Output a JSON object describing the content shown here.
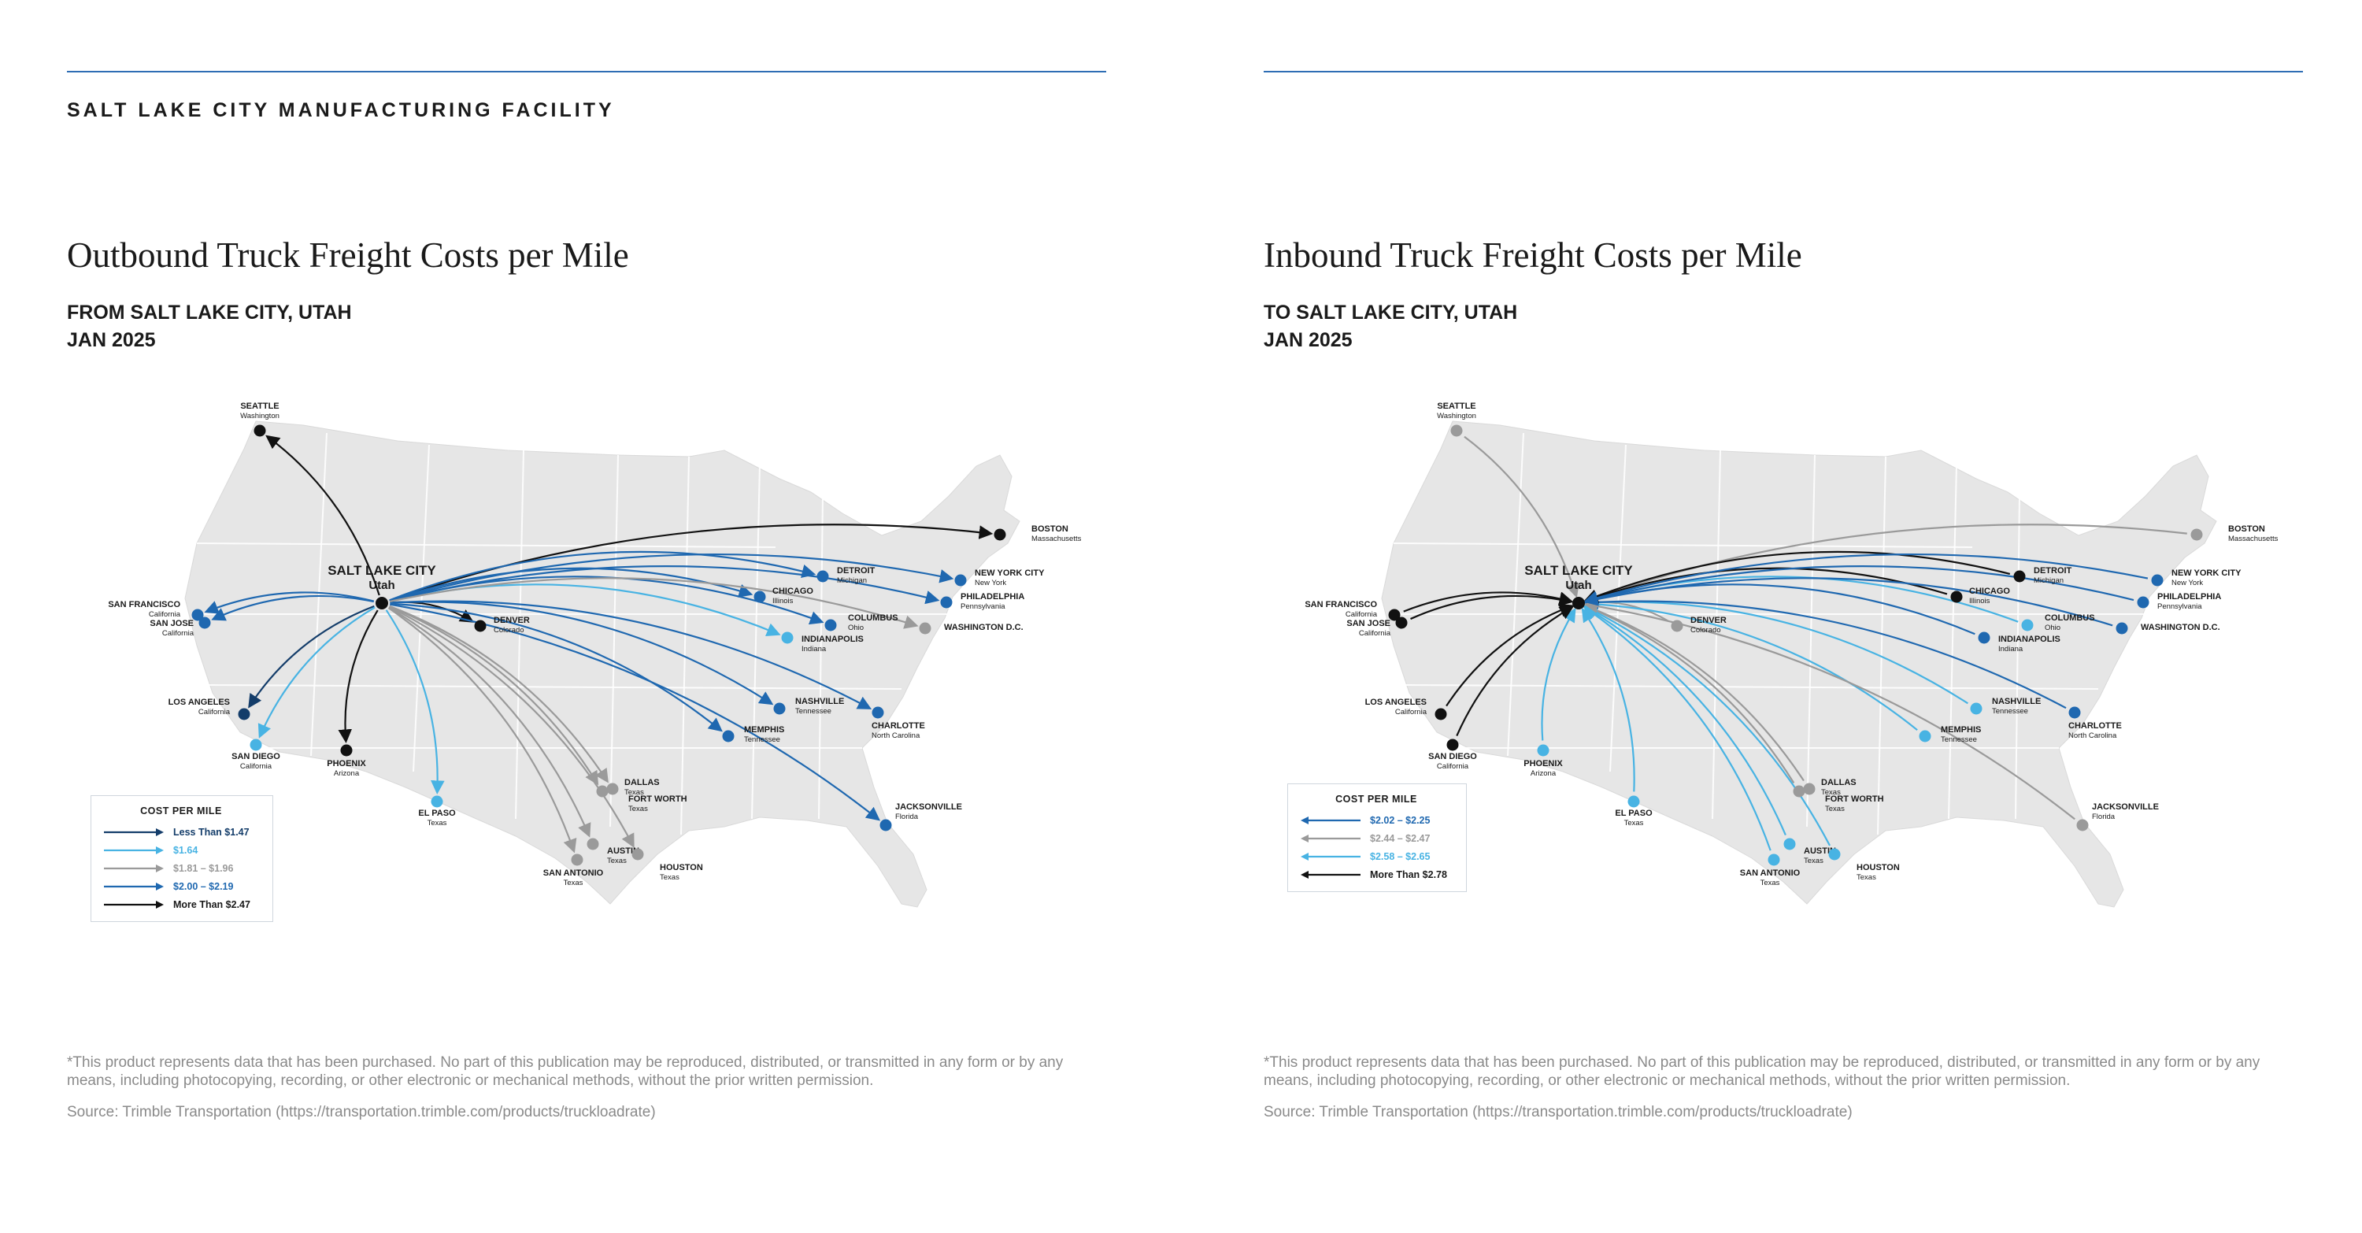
{
  "facility": "SALT LAKE CITY MANUFACTURING FACILITY",
  "colors": {
    "dark_navy": "#143d6a",
    "blue": "#1f68b0",
    "light_blue": "#48b3e3",
    "gray": "#9a9a9a",
    "black": "#111111",
    "land": "#e6e6e6",
    "border": "#ffffff"
  },
  "maps": [
    {
      "title": "Outbound Truck Freight Costs per Mile",
      "subtitle_line1": "FROM SALT LAKE CITY, UTAH",
      "subtitle_line2": "JAN 2025",
      "direction": "outbound",
      "hub": {
        "name": "SALT LAKE CITY",
        "state": "Utah"
      },
      "legend": {
        "title": "COST PER MILE",
        "items": [
          {
            "key": "dark_navy",
            "label": "Less Than $1.47"
          },
          {
            "key": "light_blue",
            "label": "$1.64"
          },
          {
            "key": "gray",
            "label": "$1.81 – $1.96"
          },
          {
            "key": "blue",
            "label": "$2.00 – $2.19"
          },
          {
            "key": "black",
            "label": "More Than $2.47"
          }
        ]
      },
      "routes": [
        {
          "city": "SEATTLE",
          "state": "Washington",
          "tier": "black"
        },
        {
          "city": "BOSTON",
          "state": "Massachusetts",
          "tier": "black"
        },
        {
          "city": "DENVER",
          "state": "Colorado",
          "tier": "black"
        },
        {
          "city": "PHOENIX",
          "state": "Arizona",
          "tier": "black"
        },
        {
          "city": "SAN FRANCISCO",
          "state": "California",
          "tier": "blue"
        },
        {
          "city": "SAN JOSE",
          "state": "California",
          "tier": "blue"
        },
        {
          "city": "LOS ANGELES",
          "state": "California",
          "tier": "dark_navy"
        },
        {
          "city": "SAN DIEGO",
          "state": "California",
          "tier": "light_blue"
        },
        {
          "city": "EL PASO",
          "state": "Texas",
          "tier": "light_blue"
        },
        {
          "city": "DALLAS",
          "state": "Texas",
          "tier": "gray"
        },
        {
          "city": "FORT WORTH",
          "state": "Texas",
          "tier": "gray"
        },
        {
          "city": "AUSTIN",
          "state": "Texas",
          "tier": "gray"
        },
        {
          "city": "SAN ANTONIO",
          "state": "Texas",
          "tier": "gray"
        },
        {
          "city": "HOUSTON",
          "state": "Texas",
          "tier": "gray"
        },
        {
          "city": "MEMPHIS",
          "state": "Tennessee",
          "tier": "blue"
        },
        {
          "city": "NASHVILLE",
          "state": "Tennessee",
          "tier": "blue"
        },
        {
          "city": "CHARLOTTE",
          "state": "North Carolina",
          "tier": "blue"
        },
        {
          "city": "JACKSONVILLE",
          "state": "Florida",
          "tier": "blue"
        },
        {
          "city": "CHICAGO",
          "state": "Illinois",
          "tier": "blue"
        },
        {
          "city": "INDIANAPOLIS",
          "state": "Indiana",
          "tier": "light_blue"
        },
        {
          "city": "DETROIT",
          "state": "Michigan",
          "tier": "blue"
        },
        {
          "city": "COLUMBUS",
          "state": "Ohio",
          "tier": "blue"
        },
        {
          "city": "NEW YORK CITY",
          "state": "New York",
          "tier": "blue"
        },
        {
          "city": "PHILADELPHIA",
          "state": "Pennsylvania",
          "tier": "blue"
        },
        {
          "city": "WASHINGTON D.C.",
          "state": "",
          "tier": "gray"
        }
      ]
    },
    {
      "title": "Inbound Truck Freight Costs per Mile",
      "subtitle_line1": "TO SALT LAKE CITY, UTAH",
      "subtitle_line2": "JAN 2025",
      "direction": "inbound",
      "hub": {
        "name": "SALT LAKE CITY",
        "state": "Utah"
      },
      "legend": {
        "title": "COST PER MILE",
        "items": [
          {
            "key": "blue",
            "label": "$2.02 – $2.25"
          },
          {
            "key": "gray",
            "label": "$2.44 – $2.47"
          },
          {
            "key": "light_blue",
            "label": "$2.58 – $2.65"
          },
          {
            "key": "black",
            "label": "More Than $2.78"
          }
        ]
      },
      "routes": [
        {
          "city": "SEATTLE",
          "state": "Washington",
          "tier": "gray"
        },
        {
          "city": "BOSTON",
          "state": "Massachusetts",
          "tier": "gray"
        },
        {
          "city": "DENVER",
          "state": "Colorado",
          "tier": "gray"
        },
        {
          "city": "PHOENIX",
          "state": "Arizona",
          "tier": "light_blue"
        },
        {
          "city": "SAN FRANCISCO",
          "state": "California",
          "tier": "black"
        },
        {
          "city": "SAN JOSE",
          "state": "California",
          "tier": "black"
        },
        {
          "city": "LOS ANGELES",
          "state": "California",
          "tier": "black"
        },
        {
          "city": "SAN DIEGO",
          "state": "California",
          "tier": "black"
        },
        {
          "city": "EL PASO",
          "state": "Texas",
          "tier": "light_blue"
        },
        {
          "city": "DALLAS",
          "state": "Texas",
          "tier": "gray"
        },
        {
          "city": "FORT WORTH",
          "state": "Texas",
          "tier": "gray"
        },
        {
          "city": "AUSTIN",
          "state": "Texas",
          "tier": "light_blue"
        },
        {
          "city": "SAN ANTONIO",
          "state": "Texas",
          "tier": "light_blue"
        },
        {
          "city": "HOUSTON",
          "state": "Texas",
          "tier": "light_blue"
        },
        {
          "city": "MEMPHIS",
          "state": "Tennessee",
          "tier": "light_blue"
        },
        {
          "city": "NASHVILLE",
          "state": "Tennessee",
          "tier": "light_blue"
        },
        {
          "city": "CHARLOTTE",
          "state": "North Carolina",
          "tier": "blue"
        },
        {
          "city": "JACKSONVILLE",
          "state": "Florida",
          "tier": "gray"
        },
        {
          "city": "CHICAGO",
          "state": "Illinois",
          "tier": "black"
        },
        {
          "city": "INDIANAPOLIS",
          "state": "Indiana",
          "tier": "blue"
        },
        {
          "city": "DETROIT",
          "state": "Michigan",
          "tier": "black"
        },
        {
          "city": "COLUMBUS",
          "state": "Ohio",
          "tier": "light_blue"
        },
        {
          "city": "NEW YORK CITY",
          "state": "New York",
          "tier": "blue"
        },
        {
          "city": "PHILADELPHIA",
          "state": "Pennsylvania",
          "tier": "blue"
        },
        {
          "city": "WASHINGTON D.C.",
          "state": "",
          "tier": "blue"
        }
      ]
    }
  ],
  "disclaimer": "*This product represents data that has been purchased. No part of this publication may be reproduced, distributed, or transmitted in any form or by any means, including photocopying, recording, or other electronic or mechanical methods, without the prior written permission.",
  "source": "Source: Trimble Transportation (https://transportation.trimble.com/products/truckloadrate)"
}
